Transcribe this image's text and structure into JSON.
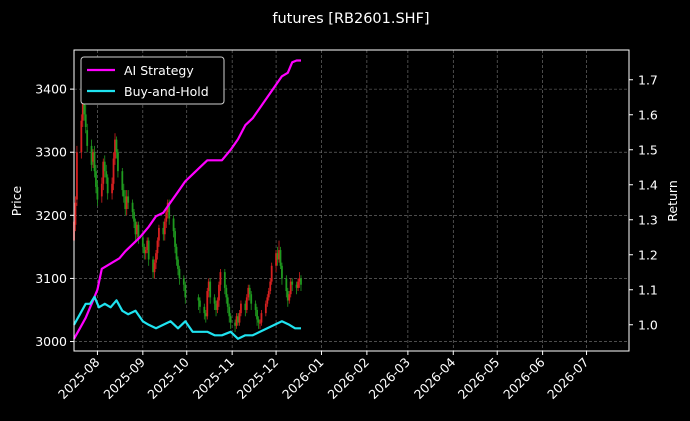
{
  "chart_data": {
    "type": "line",
    "title": "futures [RB2601.SHF]",
    "ylabel_left": "Price",
    "ylabel_right": "Return",
    "ylim_left": [
      2985,
      3462
    ],
    "ylim_right": [
      0.925,
      1.785
    ],
    "yticks_left": [
      3000,
      3100,
      3200,
      3300,
      3400
    ],
    "yticks_right": [
      1.0,
      1.1,
      1.2,
      1.3,
      1.4,
      1.5,
      1.6,
      1.7
    ],
    "x_range": [
      "2025-07-16",
      "2026-07-30"
    ],
    "x_ticks": [
      "2025-08",
      "2025-09",
      "2025-10",
      "2025-11",
      "2025-12",
      "2026-01",
      "2026-02",
      "2026-03",
      "2026-04",
      "2026-05",
      "2026-06",
      "2026-07"
    ],
    "grid": true,
    "legend_position": "top-left",
    "colors": {
      "up": "#d62020",
      "down": "#1f9a1f",
      "ai": "#ff00ff",
      "bh": "#1fe3f0"
    },
    "candles": {
      "dates": [
        "2025-07-16",
        "2025-07-17",
        "2025-07-18",
        "2025-07-21",
        "2025-07-22",
        "2025-07-23",
        "2025-07-24",
        "2025-07-25",
        "2025-07-28",
        "2025-07-29",
        "2025-07-30",
        "2025-07-31",
        "2025-08-01",
        "2025-08-04",
        "2025-08-05",
        "2025-08-06",
        "2025-08-07",
        "2025-08-08",
        "2025-08-11",
        "2025-08-12",
        "2025-08-13",
        "2025-08-14",
        "2025-08-15",
        "2025-08-18",
        "2025-08-19",
        "2025-08-20",
        "2025-08-21",
        "2025-08-22",
        "2025-08-25",
        "2025-08-26",
        "2025-08-27",
        "2025-08-28",
        "2025-08-29",
        "2025-09-01",
        "2025-09-02",
        "2025-09-03",
        "2025-09-04",
        "2025-09-05",
        "2025-09-08",
        "2025-09-09",
        "2025-09-10",
        "2025-09-11",
        "2025-09-12",
        "2025-09-15",
        "2025-09-16",
        "2025-09-17",
        "2025-09-18",
        "2025-09-19",
        "2025-09-22",
        "2025-09-23",
        "2025-09-24",
        "2025-09-25",
        "2025-09-26",
        "2025-09-29",
        "2025-09-30",
        "2025-10-09",
        "2025-10-10",
        "2025-10-13",
        "2025-10-14",
        "2025-10-15",
        "2025-10-16",
        "2025-10-17",
        "2025-10-20",
        "2025-10-21",
        "2025-10-22",
        "2025-10-23",
        "2025-10-24",
        "2025-10-27",
        "2025-10-28",
        "2025-10-29",
        "2025-10-30",
        "2025-10-31",
        "2025-11-03",
        "2025-11-04",
        "2025-11-05",
        "2025-11-06",
        "2025-11-07",
        "2025-11-10",
        "2025-11-11",
        "2025-11-12",
        "2025-11-13",
        "2025-11-14",
        "2025-11-17",
        "2025-11-18",
        "2025-11-19",
        "2025-11-20",
        "2025-11-21",
        "2025-11-24",
        "2025-11-25",
        "2025-11-26",
        "2025-11-27",
        "2025-11-28",
        "2025-12-01",
        "2025-12-02",
        "2025-12-03",
        "2025-12-04",
        "2025-12-05",
        "2025-12-08",
        "2025-12-09",
        "2025-12-10",
        "2025-12-11",
        "2025-12-12",
        "2025-12-15",
        "2025-12-16",
        "2025-12-17",
        "2025-12-18"
      ],
      "open": [
        3160,
        3185,
        3225,
        3300,
        3350,
        3385,
        3360,
        3335,
        3310,
        3285,
        3300,
        3270,
        3245,
        3230,
        3250,
        3285,
        3270,
        3260,
        3235,
        3250,
        3290,
        3320,
        3300,
        3270,
        3240,
        3230,
        3210,
        3230,
        3220,
        3205,
        3190,
        3170,
        3185,
        3165,
        3150,
        3140,
        3145,
        3160,
        3130,
        3110,
        3125,
        3140,
        3160,
        3180,
        3170,
        3190,
        3205,
        3220,
        3195,
        3175,
        3150,
        3130,
        3115,
        3100,
        3090,
        3070,
        3065,
        3055,
        3045,
        3040,
        3080,
        3095,
        3070,
        3060,
        3050,
        3065,
        3090,
        3110,
        3085,
        3070,
        3055,
        3040,
        3030,
        3025,
        3040,
        3030,
        3045,
        3060,
        3050,
        3070,
        3085,
        3075,
        3060,
        3050,
        3035,
        3030,
        3030,
        3045,
        3060,
        3070,
        3080,
        3095,
        3120,
        3140,
        3130,
        3145,
        3120,
        3100,
        3080,
        3065,
        3075,
        3095,
        3090,
        3085,
        3095,
        3100
      ],
      "close": [
        3190,
        3220,
        3300,
        3350,
        3390,
        3360,
        3340,
        3310,
        3280,
        3300,
        3270,
        3245,
        3225,
        3250,
        3285,
        3270,
        3260,
        3235,
        3250,
        3290,
        3320,
        3300,
        3270,
        3240,
        3230,
        3210,
        3230,
        3220,
        3205,
        3190,
        3170,
        3185,
        3165,
        3150,
        3140,
        3145,
        3160,
        3130,
        3110,
        3125,
        3140,
        3160,
        3180,
        3170,
        3190,
        3205,
        3220,
        3195,
        3175,
        3150,
        3130,
        3115,
        3100,
        3090,
        3070,
        3065,
        3055,
        3045,
        3040,
        3080,
        3095,
        3070,
        3060,
        3050,
        3065,
        3090,
        3110,
        3085,
        3070,
        3055,
        3040,
        3030,
        3025,
        3040,
        3030,
        3045,
        3060,
        3050,
        3070,
        3085,
        3075,
        3060,
        3050,
        3035,
        3030,
        3030,
        3045,
        3060,
        3070,
        3080,
        3095,
        3120,
        3140,
        3130,
        3145,
        3120,
        3100,
        3080,
        3065,
        3075,
        3095,
        3090,
        3085,
        3095,
        3100,
        3090
      ],
      "high": [
        3200,
        3230,
        3310,
        3360,
        3400,
        3395,
        3375,
        3345,
        3320,
        3305,
        3310,
        3280,
        3255,
        3260,
        3290,
        3295,
        3280,
        3265,
        3260,
        3300,
        3330,
        3325,
        3305,
        3275,
        3250,
        3240,
        3240,
        3240,
        3225,
        3210,
        3195,
        3190,
        3190,
        3170,
        3155,
        3150,
        3165,
        3165,
        3135,
        3130,
        3145,
        3165,
        3185,
        3190,
        3195,
        3210,
        3225,
        3225,
        3200,
        3180,
        3155,
        3135,
        3120,
        3105,
        3095,
        3075,
        3070,
        3060,
        3050,
        3085,
        3100,
        3100,
        3075,
        3065,
        3070,
        3095,
        3115,
        3115,
        3090,
        3075,
        3060,
        3045,
        3035,
        3045,
        3045,
        3050,
        3065,
        3065,
        3075,
        3090,
        3090,
        3080,
        3065,
        3055,
        3040,
        3035,
        3050,
        3065,
        3075,
        3085,
        3100,
        3125,
        3145,
        3150,
        3160,
        3150,
        3125,
        3105,
        3085,
        3080,
        3100,
        3100,
        3095,
        3100,
        3110,
        3105
      ],
      "low": [
        3150,
        3175,
        3215,
        3290,
        3340,
        3350,
        3330,
        3300,
        3270,
        3275,
        3260,
        3235,
        3215,
        3220,
        3240,
        3260,
        3250,
        3225,
        3225,
        3240,
        3280,
        3290,
        3260,
        3230,
        3220,
        3200,
        3200,
        3210,
        3195,
        3180,
        3160,
        3160,
        3155,
        3140,
        3130,
        3130,
        3140,
        3120,
        3100,
        3100,
        3115,
        3130,
        3150,
        3160,
        3160,
        3180,
        3195,
        3185,
        3165,
        3140,
        3120,
        3105,
        3090,
        3080,
        3060,
        3050,
        3045,
        3035,
        3030,
        3035,
        3070,
        3060,
        3050,
        3040,
        3045,
        3055,
        3080,
        3075,
        3060,
        3045,
        3030,
        3020,
        3015,
        3020,
        3025,
        3025,
        3040,
        3040,
        3045,
        3065,
        3065,
        3050,
        3040,
        3025,
        3020,
        3020,
        3025,
        3040,
        3055,
        3065,
        3075,
        3090,
        3110,
        3120,
        3125,
        3115,
        3090,
        3070,
        3055,
        3060,
        3070,
        3080,
        3075,
        3080,
        3085,
        3080
      ]
    },
    "series": [
      {
        "name": "AI Strategy",
        "dates": [
          "2025-07-16",
          "2025-07-20",
          "2025-07-24",
          "2025-07-28",
          "2025-08-01",
          "2025-08-04",
          "2025-08-08",
          "2025-08-12",
          "2025-08-16",
          "2025-08-20",
          "2025-08-25",
          "2025-08-30",
          "2025-09-05",
          "2025-09-10",
          "2025-09-15",
          "2025-09-20",
          "2025-09-25",
          "2025-09-30",
          "2025-10-05",
          "2025-10-10",
          "2025-10-15",
          "2025-10-20",
          "2025-10-25",
          "2025-10-31",
          "2025-11-05",
          "2025-11-10",
          "2025-11-15",
          "2025-11-20",
          "2025-11-25",
          "2025-11-30",
          "2025-12-05",
          "2025-12-09",
          "2025-12-12",
          "2025-12-15",
          "2025-12-18"
        ],
        "values": [
          0.96,
          0.99,
          1.02,
          1.06,
          1.1,
          1.16,
          1.17,
          1.18,
          1.19,
          1.21,
          1.23,
          1.25,
          1.28,
          1.31,
          1.32,
          1.35,
          1.38,
          1.41,
          1.43,
          1.45,
          1.47,
          1.47,
          1.47,
          1.5,
          1.53,
          1.57,
          1.59,
          1.62,
          1.65,
          1.68,
          1.71,
          1.72,
          1.75,
          1.755,
          1.755
        ]
      },
      {
        "name": "Buy-and-Hold",
        "dates": [
          "2025-07-16",
          "2025-07-20",
          "2025-07-24",
          "2025-07-27",
          "2025-07-30",
          "2025-08-02",
          "2025-08-06",
          "2025-08-10",
          "2025-08-14",
          "2025-08-18",
          "2025-08-22",
          "2025-08-27",
          "2025-09-01",
          "2025-09-05",
          "2025-09-10",
          "2025-09-15",
          "2025-09-20",
          "2025-09-25",
          "2025-09-30",
          "2025-10-05",
          "2025-10-10",
          "2025-10-15",
          "2025-10-20",
          "2025-10-25",
          "2025-10-31",
          "2025-11-05",
          "2025-11-10",
          "2025-11-15",
          "2025-11-20",
          "2025-11-25",
          "2025-11-30",
          "2025-12-05",
          "2025-12-10",
          "2025-12-14",
          "2025-12-18"
        ],
        "values": [
          1.0,
          1.03,
          1.06,
          1.06,
          1.08,
          1.05,
          1.06,
          1.05,
          1.07,
          1.04,
          1.03,
          1.04,
          1.01,
          1.0,
          0.99,
          1.0,
          1.01,
          0.99,
          1.01,
          0.98,
          0.98,
          0.98,
          0.97,
          0.97,
          0.98,
          0.96,
          0.97,
          0.97,
          0.98,
          0.99,
          1.0,
          1.01,
          1.0,
          0.99,
          0.99
        ]
      }
    ]
  }
}
